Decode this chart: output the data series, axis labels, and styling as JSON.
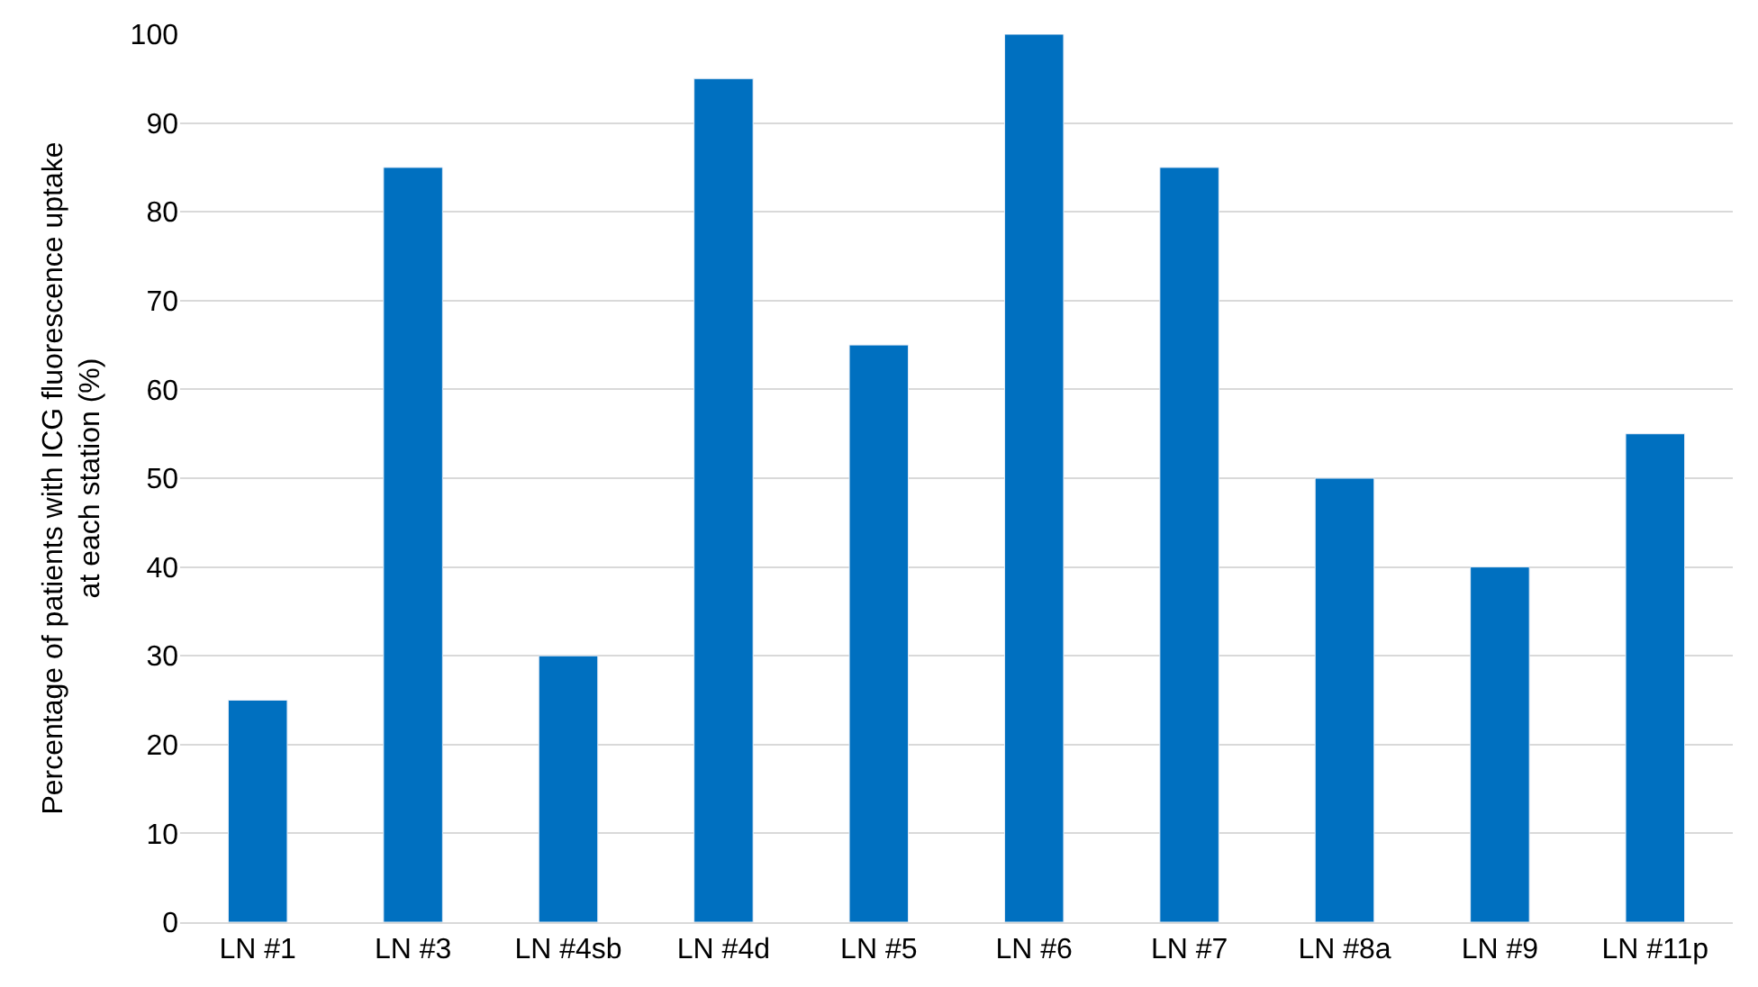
{
  "chart_data": {
    "type": "bar",
    "ylabel": "Percentage of patients with ICG fluorescence uptake\nat each station (%)",
    "categories": [
      "LN #1",
      "LN #3",
      "LN #4sb",
      "LN #4d",
      "LN #5",
      "LN #6",
      "LN #7",
      "LN #8a",
      "LN #9",
      "LN #11p"
    ],
    "values": [
      25,
      85,
      30,
      95,
      65,
      100,
      85,
      50,
      40,
      55
    ],
    "color": "#0070c0",
    "ylim": [
      0,
      100
    ],
    "yticks": [
      0,
      10,
      20,
      30,
      40,
      50,
      60,
      70,
      80,
      90,
      100
    ],
    "grid": "y"
  }
}
